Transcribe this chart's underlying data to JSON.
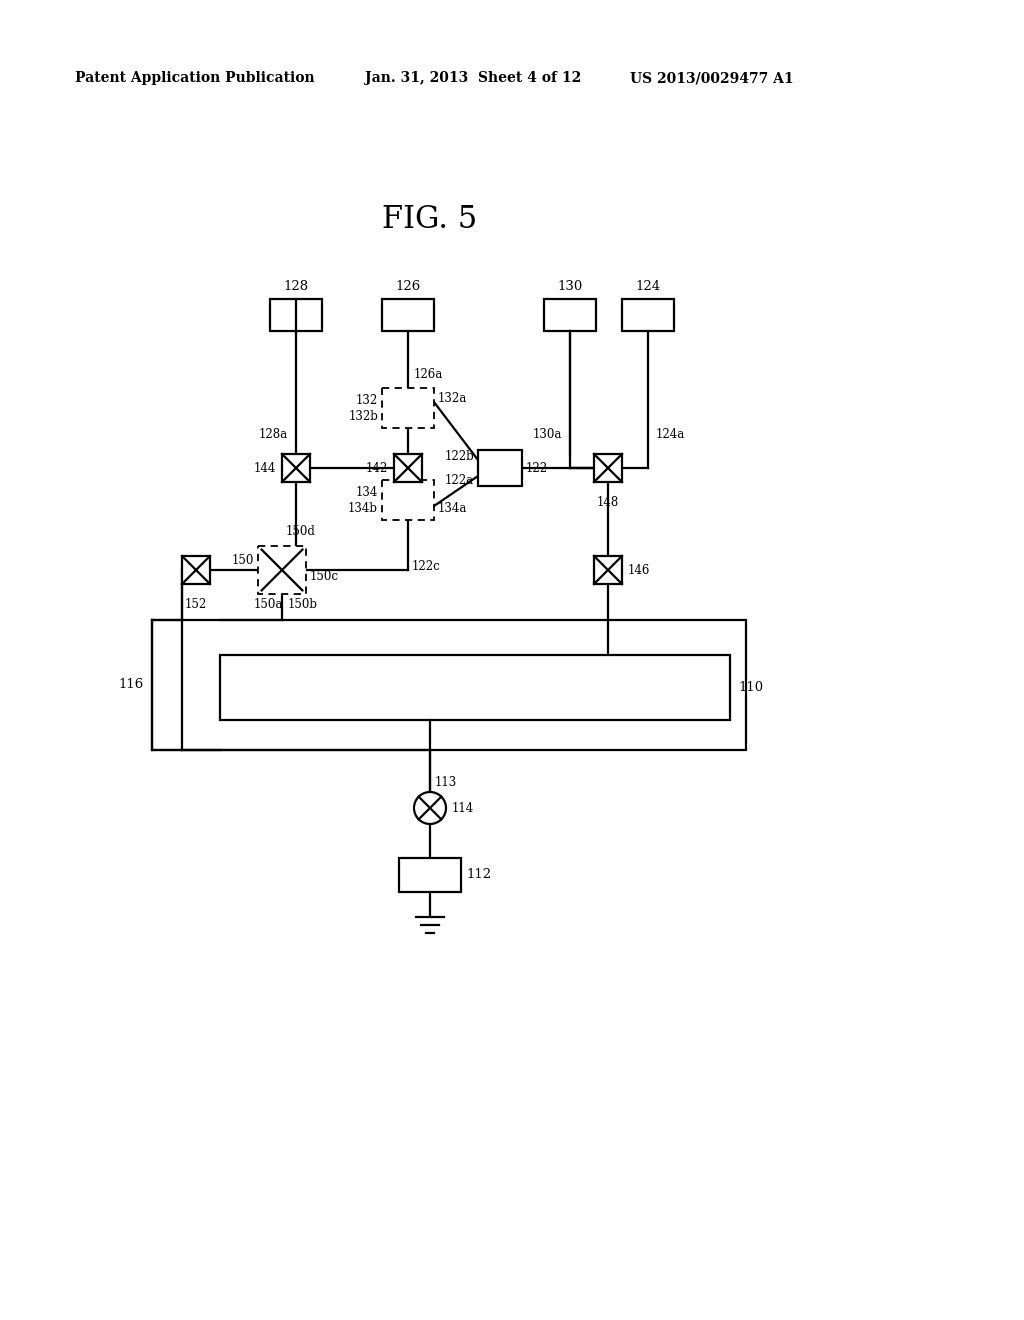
{
  "header_left": "Patent Application Publication",
  "header_mid": "Jan. 31, 2013  Sheet 4 of 12",
  "header_right": "US 2013/0029477 A1",
  "title": "FIG. 5",
  "bg": "#ffffff",
  "lc": "#000000",
  "lw": 1.6
}
